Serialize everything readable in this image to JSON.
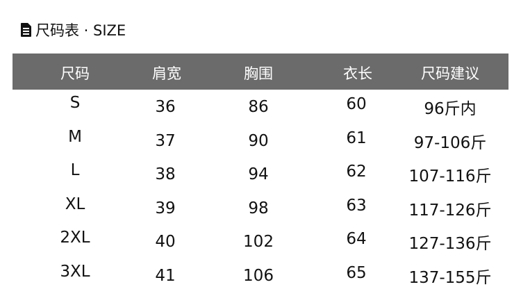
{
  "title": "尺码表 · SIZE",
  "title_icon": "document-icon",
  "header_color": "#6b6b6b",
  "columns": [
    "尺码",
    "肩宽",
    "胸围",
    "衣长",
    "尺码建议"
  ],
  "rows": [
    [
      "S",
      "36",
      "86",
      "60",
      "96斤内"
    ],
    [
      "M",
      "37",
      "90",
      "61",
      "97-106斤"
    ],
    [
      "L",
      "38",
      "94",
      "62",
      "107-116斤"
    ],
    [
      "XL",
      "39",
      "98",
      "63",
      "117-126斤"
    ],
    [
      "2XL",
      "40",
      "102",
      "64",
      "127-136斤"
    ],
    [
      "3XL",
      "41",
      "106",
      "65",
      "137-155斤"
    ]
  ]
}
